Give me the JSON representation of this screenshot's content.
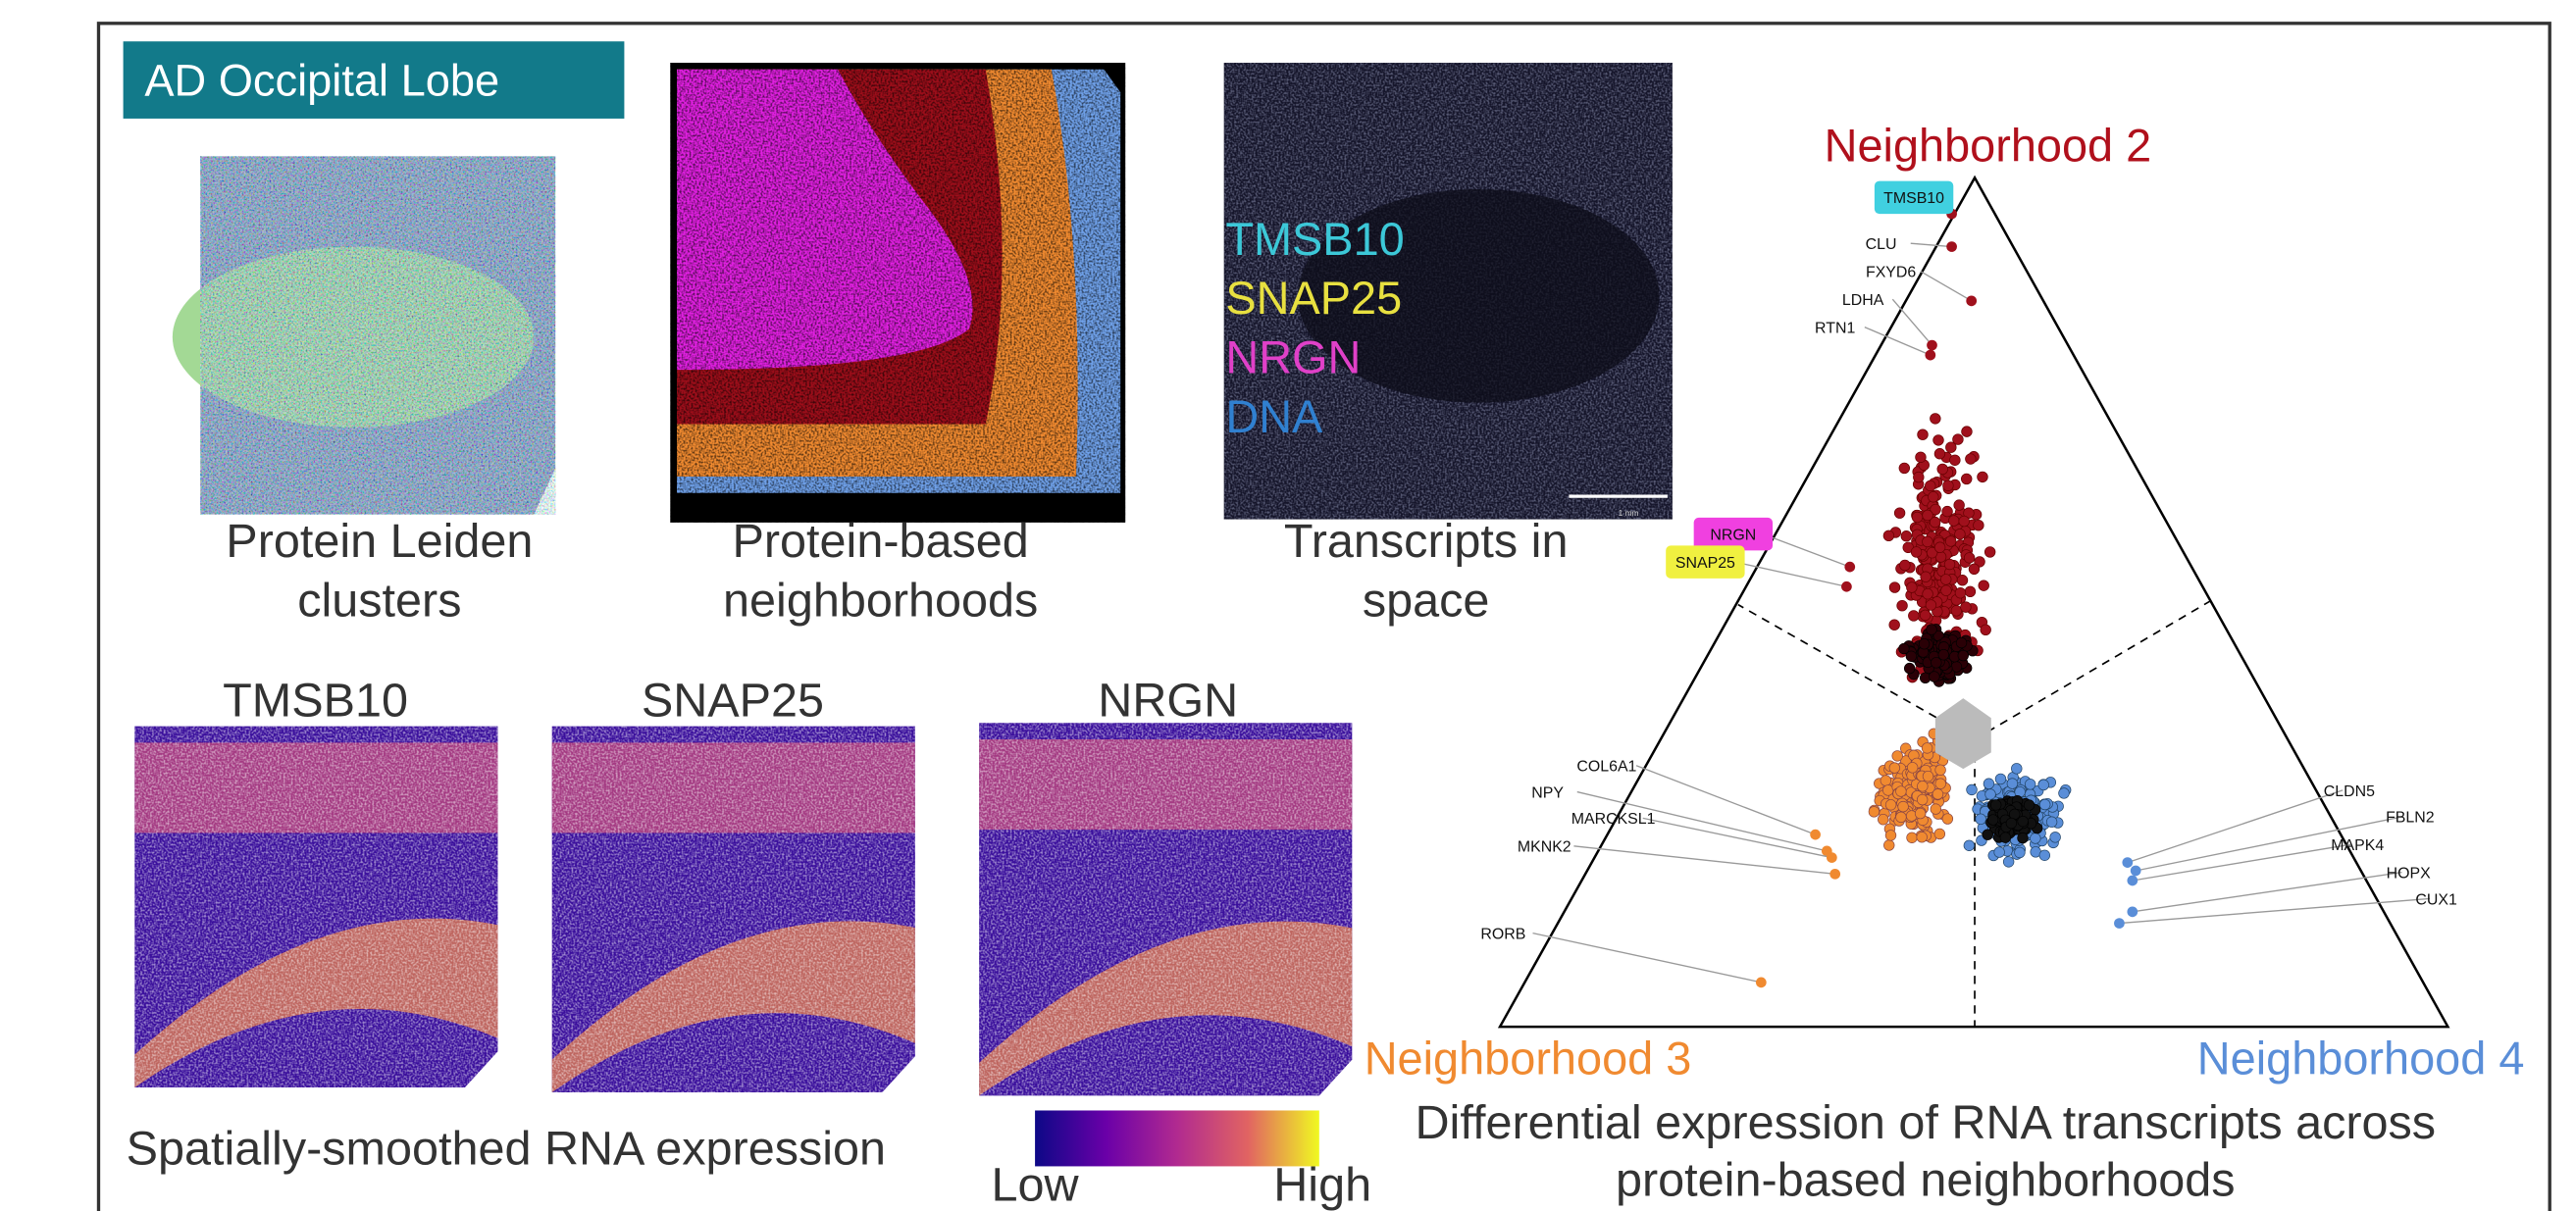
{
  "panel_title": "AD Occipital Lobe",
  "top_panels": [
    {
      "caption_lines": [
        "Protein Leiden",
        "clusters"
      ]
    },
    {
      "caption_lines": [
        "Protein-based",
        "neighborhoods"
      ]
    },
    {
      "caption_lines": [
        "Transcripts in",
        "space"
      ]
    }
  ],
  "transcript_legend": [
    "TMSB10",
    "SNAP25",
    "NRGN",
    "DNA"
  ],
  "scale_bar": "1 mm",
  "expression_panels": [
    "TMSB10",
    "SNAP25",
    "NRGN"
  ],
  "expression_caption": "Spatially-smoothed RNA expression",
  "colorbar": {
    "low": "Low",
    "high": "High"
  },
  "ternary": {
    "vertices": [
      "Neighborhood 2",
      "Neighborhood 3",
      "Neighborhood 4"
    ],
    "genes": [
      "TMSB10",
      "CLU",
      "FXYD6",
      "LDHA",
      "RTN1",
      "NRGN",
      "SNAP25",
      "COL6A1",
      "NPY",
      "MARCKSL1",
      "MKNK2",
      "RORB",
      "CLDN5",
      "FBLN2",
      "MAPK4",
      "HOPX",
      "CUX1"
    ],
    "caption_lines": [
      "Differential expression of RNA transcripts across",
      "protein-based neighborhoods"
    ]
  }
}
